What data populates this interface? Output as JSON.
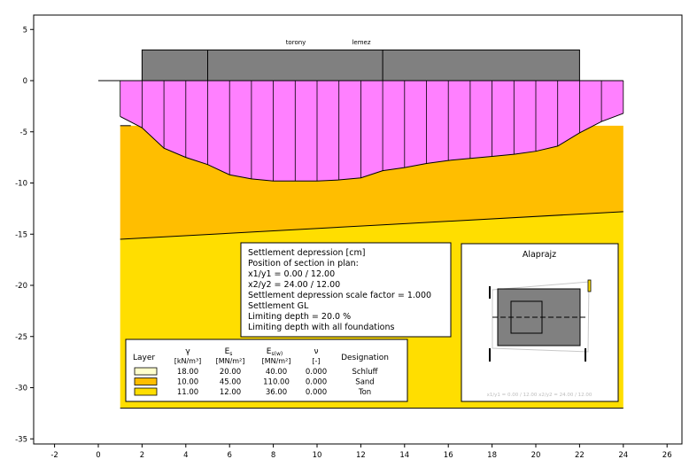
{
  "chart_data": {
    "type": "area",
    "xlim": [
      -3,
      26
    ],
    "ylim": [
      -35.5,
      6
    ],
    "x_ticks": [
      "-2",
      "0",
      "2",
      "4",
      "6",
      "8",
      "10",
      "12",
      "14",
      "16",
      "18",
      "20",
      "22",
      "24",
      "26"
    ],
    "y_ticks": [
      "5",
      "0",
      "-5",
      "-10",
      "-15",
      "-20",
      "-25",
      "-30",
      "-35"
    ],
    "structure": {
      "labels": [
        "torony",
        "lemez"
      ],
      "footing": {
        "x_from": 2,
        "x_to": 22,
        "y_from": 0,
        "y_to": 3
      },
      "dividers_x": [
        5,
        13
      ]
    },
    "terrain": {
      "x_from": 0,
      "x_to": 2,
      "y": 0
    },
    "settlement_depression": {
      "x": [
        1,
        2,
        3,
        4,
        5,
        6,
        7,
        8,
        9,
        10,
        11,
        12,
        13,
        14,
        15,
        16,
        17,
        18,
        19,
        20,
        21,
        22,
        23,
        24
      ],
      "y": [
        -3.5,
        -4.6,
        -6.6,
        -7.5,
        -8.2,
        -9.2,
        -9.6,
        -9.8,
        -9.8,
        -9.8,
        -9.7,
        -9.5,
        -8.8,
        -8.5,
        -8.1,
        -7.8,
        -7.6,
        -7.4,
        -7.2,
        -6.9,
        -6.4,
        -5.1,
        -4.0,
        -3.2
      ]
    },
    "layer_boundaries": [
      {
        "x": [
          1,
          24
        ],
        "y": [
          -4.4,
          -4.4
        ]
      },
      {
        "x": [
          1,
          24
        ],
        "y": [
          -15.5,
          -12.8
        ]
      },
      {
        "x": [
          1,
          24
        ],
        "y": [
          -32,
          -32
        ]
      }
    ],
    "layers": [
      {
        "designation": "Schluff",
        "gamma": "18.00",
        "edef": "20.00",
        "e2": "40.00",
        "nu": "0.000",
        "color": "#ffffcc"
      },
      {
        "designation": "Sand",
        "gamma": "10.00",
        "edef": "45.00",
        "e2": "110.00",
        "nu": "0.000",
        "color": "#ffbe00"
      },
      {
        "designation": "Ton",
        "gamma": "11.00",
        "edef": "12.00",
        "e2": "36.00",
        "nu": "0.000",
        "color": "#ffde00"
      }
    ],
    "colors": {
      "depression": "#ff80ff",
      "footing": "#808080"
    }
  },
  "info_box": {
    "lines": [
      "Settlement depression [cm]",
      "Position of section in plan:",
      "x1/y1 = 0.00 / 12.00",
      "x2/y2 = 24.00 / 12.00",
      "Settlement depression scale factor = 1.000",
      "Settlement GL",
      "Limiting depth = 20.0 %",
      "Limiting depth with all foundations"
    ]
  },
  "legend_table": {
    "headers": {
      "layer": "Layer",
      "gamma": "γ",
      "gamma_unit": "[kN/m³]",
      "edef": "E",
      "edef_sub": "s",
      "edef_unit": "[MN/m²]",
      "e2": "E",
      "e2_sub": "s(w)",
      "e2_unit": "[MN/m²]",
      "nu": "ν",
      "nu_unit": "[-]",
      "designation": "Designation"
    }
  },
  "plan_view": {
    "title": "Alaprajz",
    "caption": "x1/y1 = 0.00 / 12.00    x2/y2 = 24.00 / 12.00"
  }
}
